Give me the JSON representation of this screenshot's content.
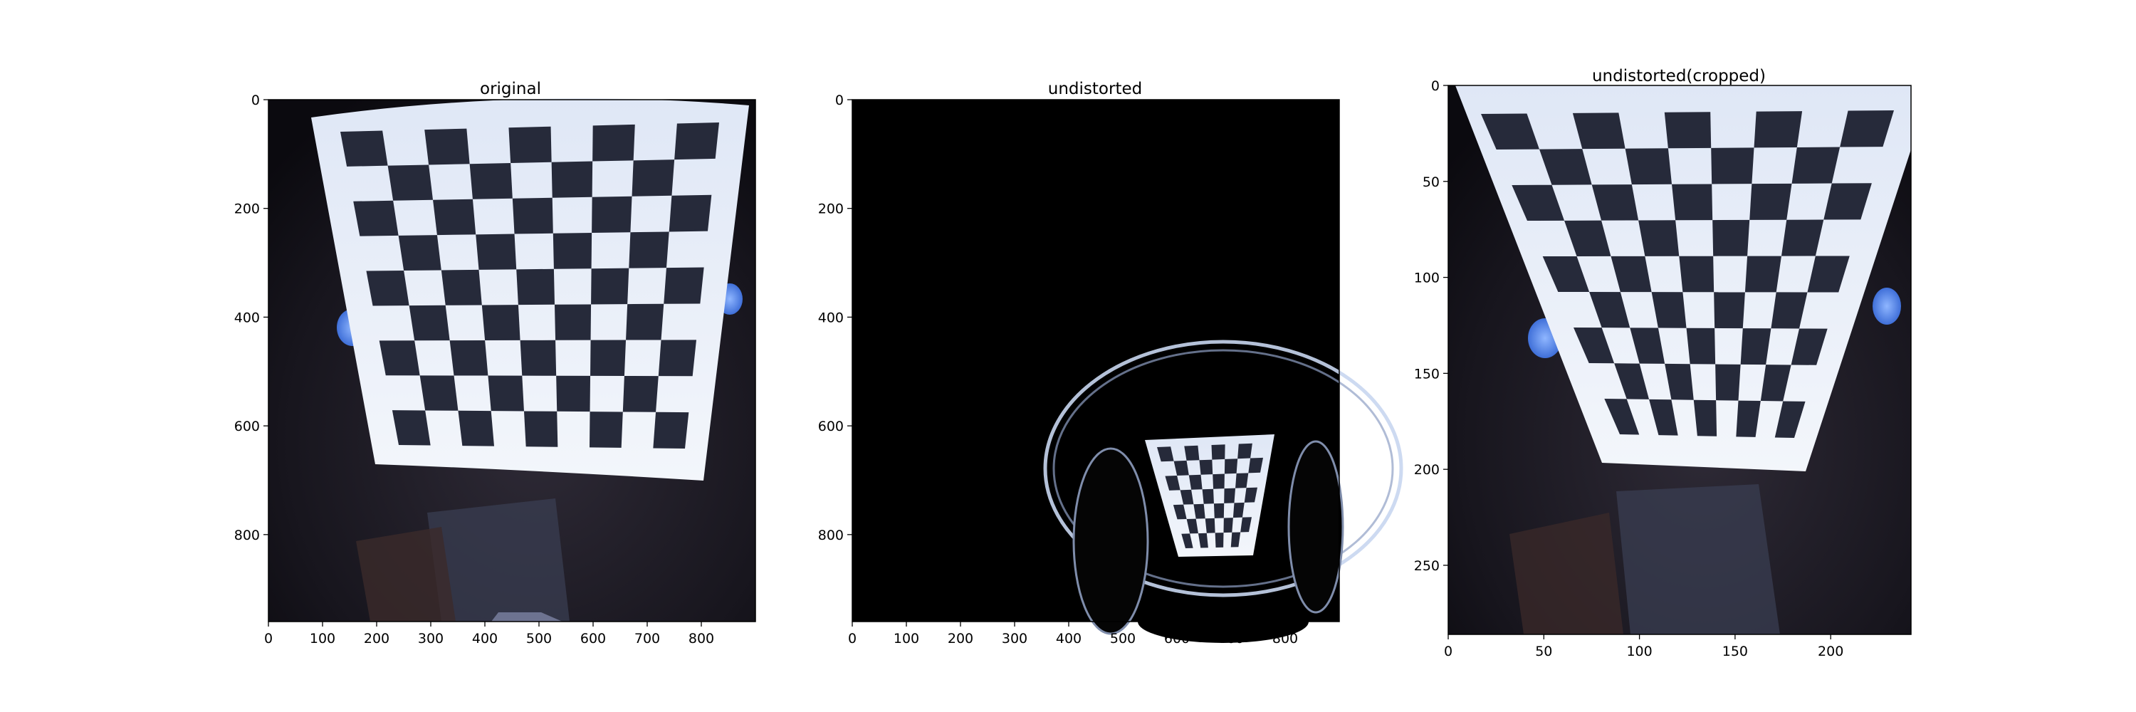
{
  "figure": {
    "background": "#ffffff",
    "axis_color": "#000000"
  },
  "chart_data": [
    {
      "type": "image",
      "title": "original",
      "xlabel": "",
      "ylabel": "",
      "xlim": [
        0,
        900
      ],
      "ylim": [
        960,
        0
      ],
      "xticks": [
        0,
        100,
        200,
        300,
        400,
        500,
        600,
        700,
        800
      ],
      "yticks": [
        0,
        200,
        400,
        600,
        800
      ],
      "content": "fisheye-distorted photograph of a black-and-white checkerboard calibration target held by a person",
      "board_color": "#e8eef8",
      "square_color": "#262a3a",
      "background_color": "#1a1820"
    },
    {
      "type": "image",
      "title": "undistorted",
      "xlabel": "",
      "ylabel": "",
      "xlim": [
        0,
        900
      ],
      "ylim": [
        960,
        0
      ],
      "xticks": [
        0,
        100,
        200,
        300,
        400,
        500,
        600,
        700,
        800
      ],
      "yticks": [
        0,
        200,
        400,
        600,
        800
      ],
      "content": "undistorted image: mostly black, with the warped checkerboard and circular artifacts in the lower-right region",
      "background_color": "#000000",
      "board_color": "#e8eef8",
      "square_color": "#262a3a"
    },
    {
      "type": "image",
      "title": "undistorted(cropped)",
      "xlabel": "",
      "ylabel": "",
      "xlim": [
        0,
        242
      ],
      "ylim": [
        286,
        0
      ],
      "xticks": [
        0,
        50,
        100,
        150,
        200
      ],
      "yticks": [
        0,
        50,
        100,
        150,
        200,
        250
      ],
      "content": "cropped undistorted photograph of the checkerboard calibration target",
      "board_color": "#e8eef8",
      "square_color": "#262a3a",
      "background_color": "#1a1820"
    }
  ]
}
